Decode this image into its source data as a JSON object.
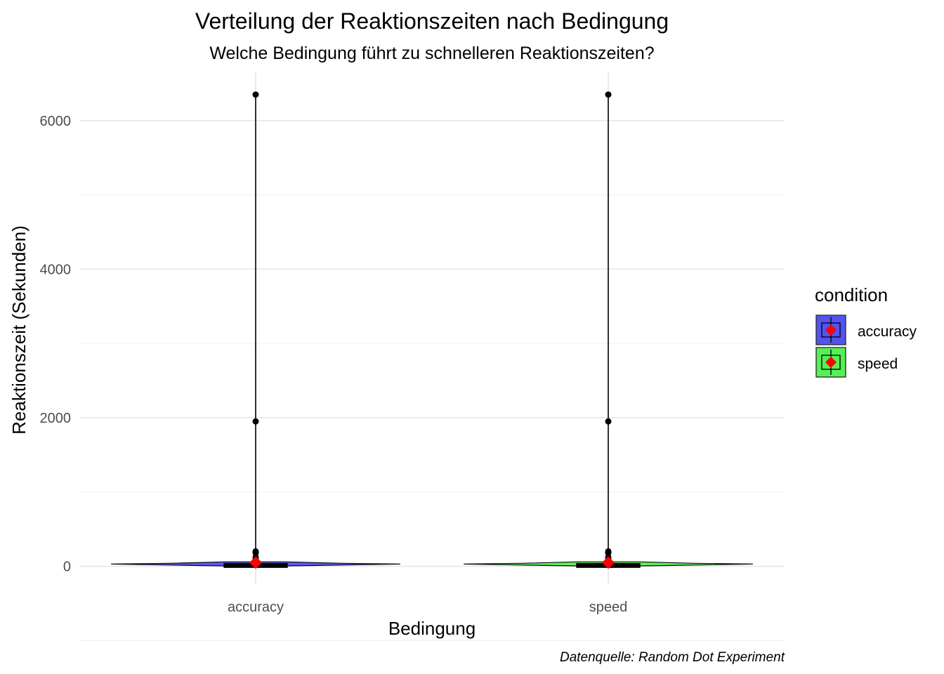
{
  "chart_data": {
    "type": "violin",
    "title": "Verteilung der Reaktionszeiten nach Bedingung",
    "subtitle": "Welche Bedingung führt zu schnelleren Reaktionszeiten?",
    "xlabel": "Bedingung",
    "ylabel": "Reaktionszeit (Sekunden)",
    "caption": "Datenquelle: Random Dot Experiment",
    "categories": [
      "accuracy",
      "speed"
    ],
    "ylim": [
      -250,
      6650
    ],
    "yticks": [
      0,
      2000,
      4000,
      6000
    ],
    "grid": true,
    "legend": {
      "title": "condition",
      "placement": "right",
      "entries": [
        "accuracy",
        "speed"
      ]
    },
    "colors": {
      "accuracy": "#5353f0",
      "speed": "#55f055",
      "mean_marker": "#ff0000",
      "outline": "#000000"
    },
    "series": [
      {
        "name": "accuracy",
        "box": {
          "min": 0,
          "q1": 2,
          "median": 5,
          "q3": 20,
          "max": 50
        },
        "mean": 50,
        "outliers": [
          6350,
          1950,
          200,
          180,
          120,
          90,
          70
        ],
        "density": [
          [
            0,
            0.06
          ],
          [
            5,
            0.22
          ],
          [
            10,
            0.4
          ],
          [
            20,
            0.7
          ],
          [
            30,
            1.0
          ],
          [
            40,
            0.6
          ],
          [
            60,
            0.2
          ]
        ]
      },
      {
        "name": "speed",
        "box": {
          "min": 0,
          "q1": 2,
          "median": 5,
          "q3": 20,
          "max": 50
        },
        "mean": 50,
        "outliers": [
          6350,
          1950,
          200,
          180,
          120,
          90,
          70
        ],
        "density": [
          [
            0,
            0.06
          ],
          [
            5,
            0.22
          ],
          [
            10,
            0.4
          ],
          [
            20,
            0.7
          ],
          [
            30,
            1.0
          ],
          [
            40,
            0.6
          ],
          [
            60,
            0.2
          ]
        ]
      }
    ]
  }
}
